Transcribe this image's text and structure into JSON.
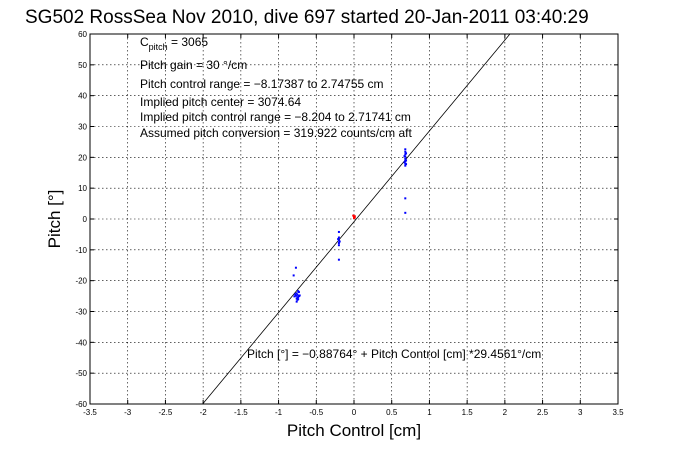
{
  "chart_data": {
    "type": "scatter",
    "title": "SG502 RossSea Nov 2010, dive 697 started 20-Jan-2011 03:40:29",
    "xlabel": "Pitch Control [cm]",
    "ylabel": "Pitch [°]",
    "xlim": [
      -3.5,
      3.5
    ],
    "ylim": [
      -60,
      60
    ],
    "xticks": [
      "-3.5",
      "-3",
      "-2.5",
      "-2",
      "-1.5",
      "-1",
      "-0.5",
      "0",
      "0.5",
      "1",
      "1.5",
      "2",
      "2.5",
      "3",
      "3.5"
    ],
    "yticks": [
      "-60",
      "-50",
      "-40",
      "-30",
      "-20",
      "-10",
      "0",
      "10",
      "20",
      "30",
      "40",
      "50",
      "60"
    ],
    "grid": true,
    "annotations": {
      "cpitch_main": "C",
      "cpitch_sub": "pitch",
      "cpitch_val": " = 3065",
      "gain": "Pitch gain = 30 °/cm",
      "range": "Pitch control range = −8.17387 to 2.74755 cm",
      "center": "Implied pitch center = 3074.64",
      "implied_range": "Implied pitch control range = −8.204 to 2.71741 cm",
      "conversion": "Assumed pitch conversion = 319.922 counts/cm aft"
    },
    "fit_label": "Pitch [°] = −0.88764° + Pitch Control [cm] *29.4561°/cm",
    "fit": {
      "intercept": -0.88764,
      "slope": 29.4561
    },
    "series": [
      {
        "color": "#0000ff",
        "points": [
          [
            -0.76,
            -24.1
          ],
          [
            -0.75,
            -24.6
          ],
          [
            -0.74,
            -25.3
          ],
          [
            -0.76,
            -25.8
          ],
          [
            -0.75,
            -26.2
          ],
          [
            -0.73,
            -23.7
          ],
          [
            -0.77,
            -24.9
          ],
          [
            -0.74,
            -23.4
          ],
          [
            -0.75,
            -25.5
          ],
          [
            -0.78,
            -24.4
          ],
          [
            -0.72,
            -24.8
          ],
          [
            -0.76,
            -26.8
          ],
          [
            -0.73,
            -25.0
          ],
          [
            -0.79,
            -25.1
          ],
          [
            -0.74,
            -26.0
          ],
          [
            -0.2,
            -6.0
          ],
          [
            -0.2,
            -7.0
          ],
          [
            -0.2,
            -7.8
          ],
          [
            -0.2,
            -8.5
          ],
          [
            -0.21,
            -6.5
          ],
          [
            -0.19,
            -7.3
          ],
          [
            -0.2,
            -4.2
          ],
          [
            -0.2,
            -13.2
          ],
          [
            0.68,
            17.3
          ],
          [
            0.68,
            18.0
          ],
          [
            0.68,
            18.8
          ],
          [
            0.68,
            19.5
          ],
          [
            0.68,
            20.2
          ],
          [
            0.68,
            21.0
          ],
          [
            0.68,
            21.8
          ],
          [
            0.68,
            22.6
          ],
          [
            0.69,
            19.0
          ],
          [
            0.67,
            20.4
          ],
          [
            0.69,
            21.3
          ],
          [
            0.67,
            18.4
          ],
          [
            0.69,
            17.8
          ],
          [
            0.68,
            6.7
          ],
          [
            0.68,
            2.0
          ],
          [
            -0.8,
            -18.3
          ],
          [
            -0.77,
            -15.8
          ]
        ]
      },
      {
        "color": "#ff0000",
        "points": [
          [
            0.0,
            0.6
          ],
          [
            0.01,
            0.9
          ],
          [
            -0.01,
            1.1
          ],
          [
            0.0,
            0.3
          ],
          [
            0.01,
            0.5
          ]
        ]
      }
    ]
  }
}
